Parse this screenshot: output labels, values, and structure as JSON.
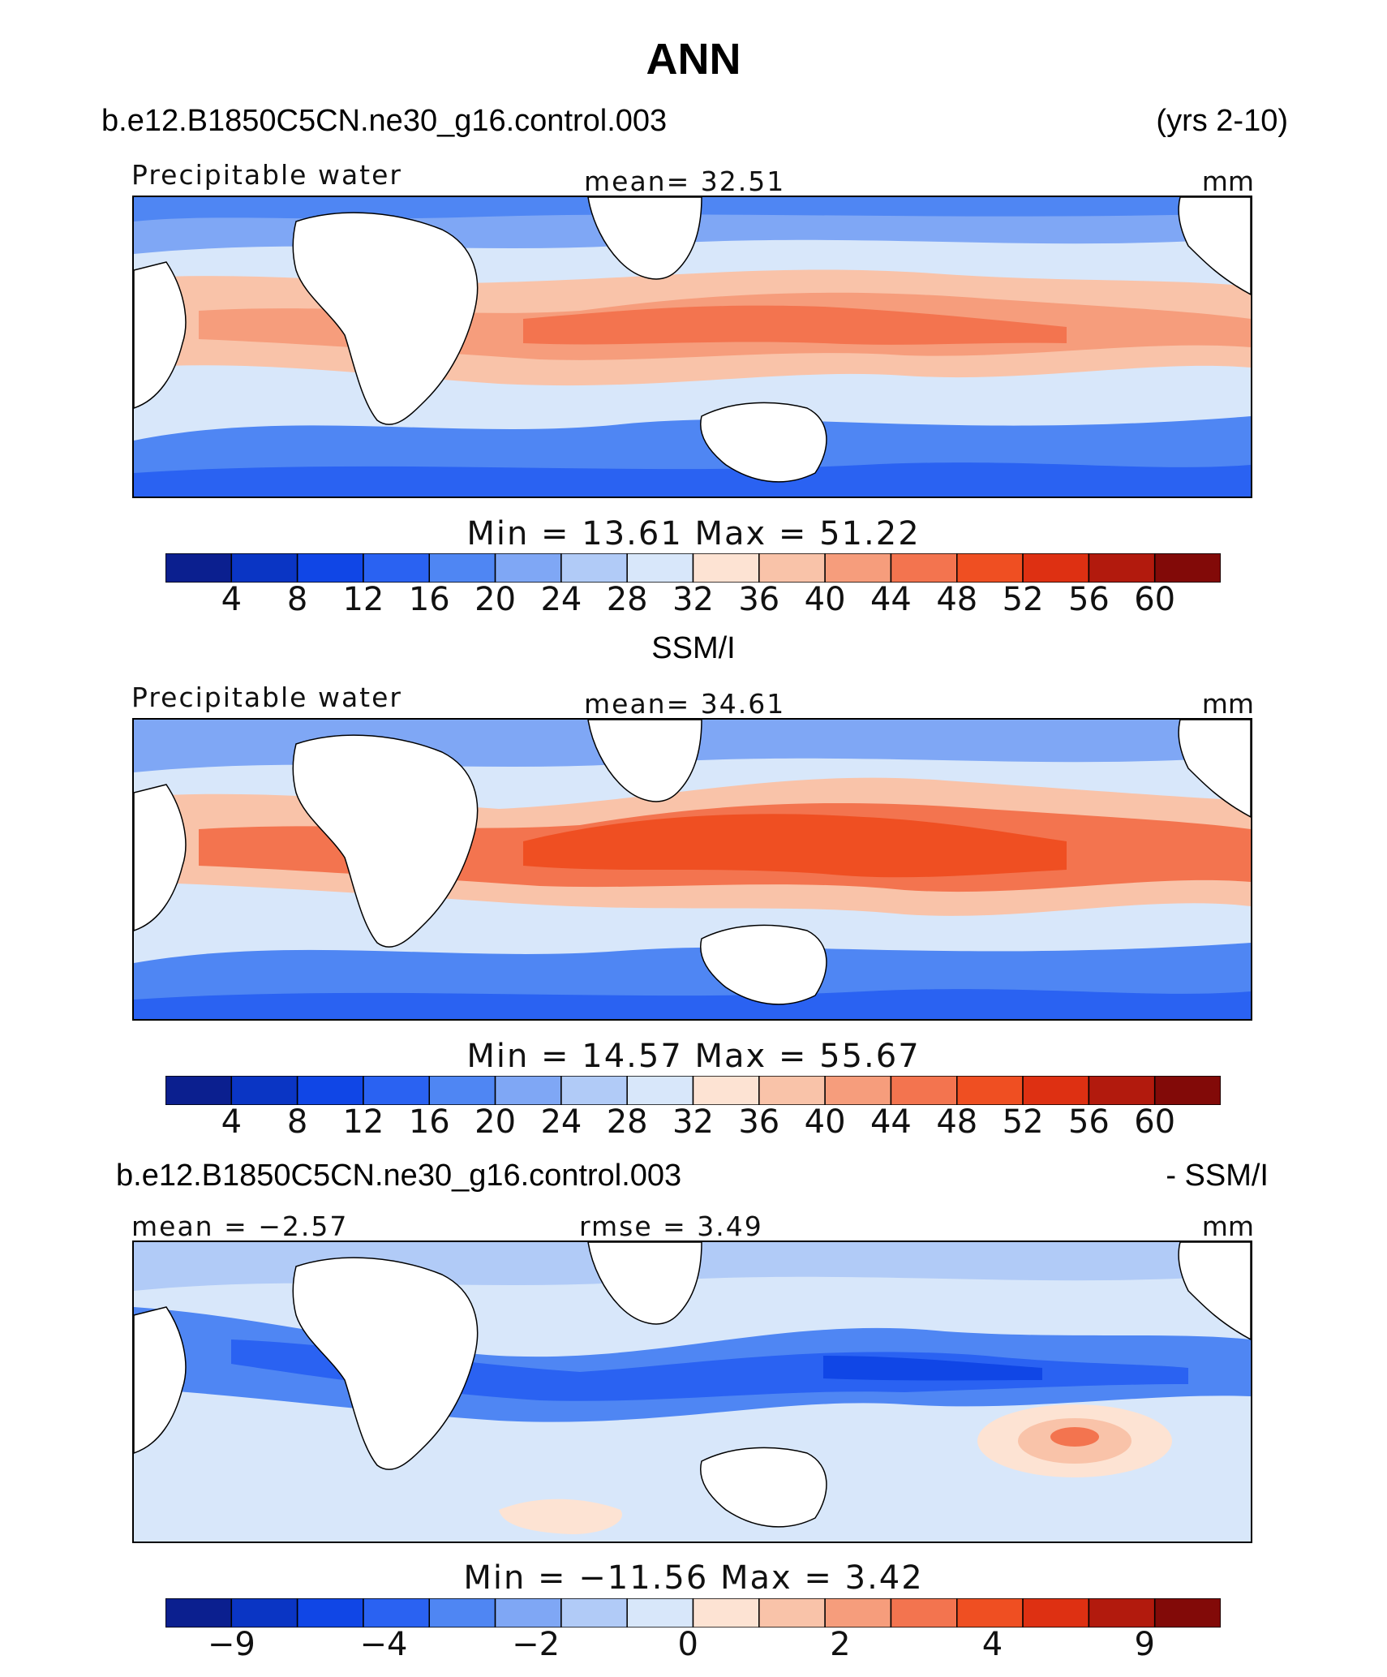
{
  "page": {
    "title": "ANN"
  },
  "panels": [
    {
      "id": "model",
      "header_left": "b.e12.B1850C5CN.ne30_g16.control.003",
      "header_right": "(yrs 2-10)",
      "left_label": "Precipitable water",
      "center_label": "mean=  32.51",
      "units": "mm",
      "minmax": "Min =   13.61  Max =   51.22",
      "colorbar": {
        "colors": [
          "#0b1f8f",
          "#0a35c4",
          "#1046e6",
          "#2a62f2",
          "#4f86f3",
          "#7fa7f5",
          "#b1cbf7",
          "#d8e7fa",
          "#fde3d3",
          "#f9c3a9",
          "#f69d7c",
          "#f3744f",
          "#ef4f22",
          "#de3012",
          "#b21a0d",
          "#820a08"
        ],
        "ticks": [
          "4",
          "8",
          "12",
          "16",
          "20",
          "24",
          "28",
          "32",
          "36",
          "40",
          "44",
          "48",
          "52",
          "56",
          "60"
        ]
      }
    },
    {
      "id": "obs",
      "header_center": "SSM/I",
      "left_label": "Precipitable water",
      "center_label": "mean=  34.61",
      "units": "mm",
      "minmax": "Min =   14.57  Max =   55.67",
      "colorbar": {
        "colors": [
          "#0b1f8f",
          "#0a35c4",
          "#1046e6",
          "#2a62f2",
          "#4f86f3",
          "#7fa7f5",
          "#b1cbf7",
          "#d8e7fa",
          "#fde3d3",
          "#f9c3a9",
          "#f69d7c",
          "#f3744f",
          "#ef4f22",
          "#de3012",
          "#b21a0d",
          "#820a08"
        ],
        "ticks": [
          "4",
          "8",
          "12",
          "16",
          "20",
          "24",
          "28",
          "32",
          "36",
          "40",
          "44",
          "48",
          "52",
          "56",
          "60"
        ]
      }
    },
    {
      "id": "diff",
      "header_left": "b.e12.B1850C5CN.ne30_g16.control.003",
      "header_right": "- SSM/I",
      "left_label": "mean =  −2.57",
      "center_label": "rmse =    3.49",
      "units": "mm",
      "minmax": "Min = −11.56  Max =    3.42",
      "colorbar": {
        "colors": [
          "#0b1f8f",
          "#0a35c4",
          "#1046e6",
          "#2a62f2",
          "#4f86f3",
          "#7fa7f5",
          "#b1cbf7",
          "#d8e7fa",
          "#fde3d3",
          "#f9c3a9",
          "#f69d7c",
          "#f3744f",
          "#ef4f22",
          "#de3012",
          "#b21a0d",
          "#820a08"
        ],
        "ticks": [
          "−9",
          "",
          "−4",
          "",
          "−2",
          "",
          "0",
          "",
          "2",
          "",
          "4",
          "",
          "9"
        ]
      }
    }
  ],
  "chart_data": [
    {
      "type": "heatmap",
      "title": "Precipitable water",
      "subtitle": "b.e12.B1850C5CN.ne30_g16.control.003 (yrs 2-10)",
      "units": "mm",
      "mean": 32.51,
      "min": 13.61,
      "max": 51.22,
      "levels": [
        4,
        8,
        12,
        16,
        20,
        24,
        28,
        32,
        36,
        40,
        44,
        48,
        52,
        56,
        60
      ]
    },
    {
      "type": "heatmap",
      "title": "Precipitable water",
      "subtitle": "SSM/I",
      "units": "mm",
      "mean": 34.61,
      "min": 14.57,
      "max": 55.67,
      "levels": [
        4,
        8,
        12,
        16,
        20,
        24,
        28,
        32,
        36,
        40,
        44,
        48,
        52,
        56,
        60
      ]
    },
    {
      "type": "heatmap",
      "subtitle": "b.e12.B1850C5CN.ne30_g16.control.003 - SSM/I",
      "units": "mm",
      "mean": -2.57,
      "rmse": 3.49,
      "min": -11.56,
      "max": 3.42,
      "levels": [
        -9,
        -4,
        -2,
        0,
        2,
        4,
        9
      ]
    }
  ]
}
